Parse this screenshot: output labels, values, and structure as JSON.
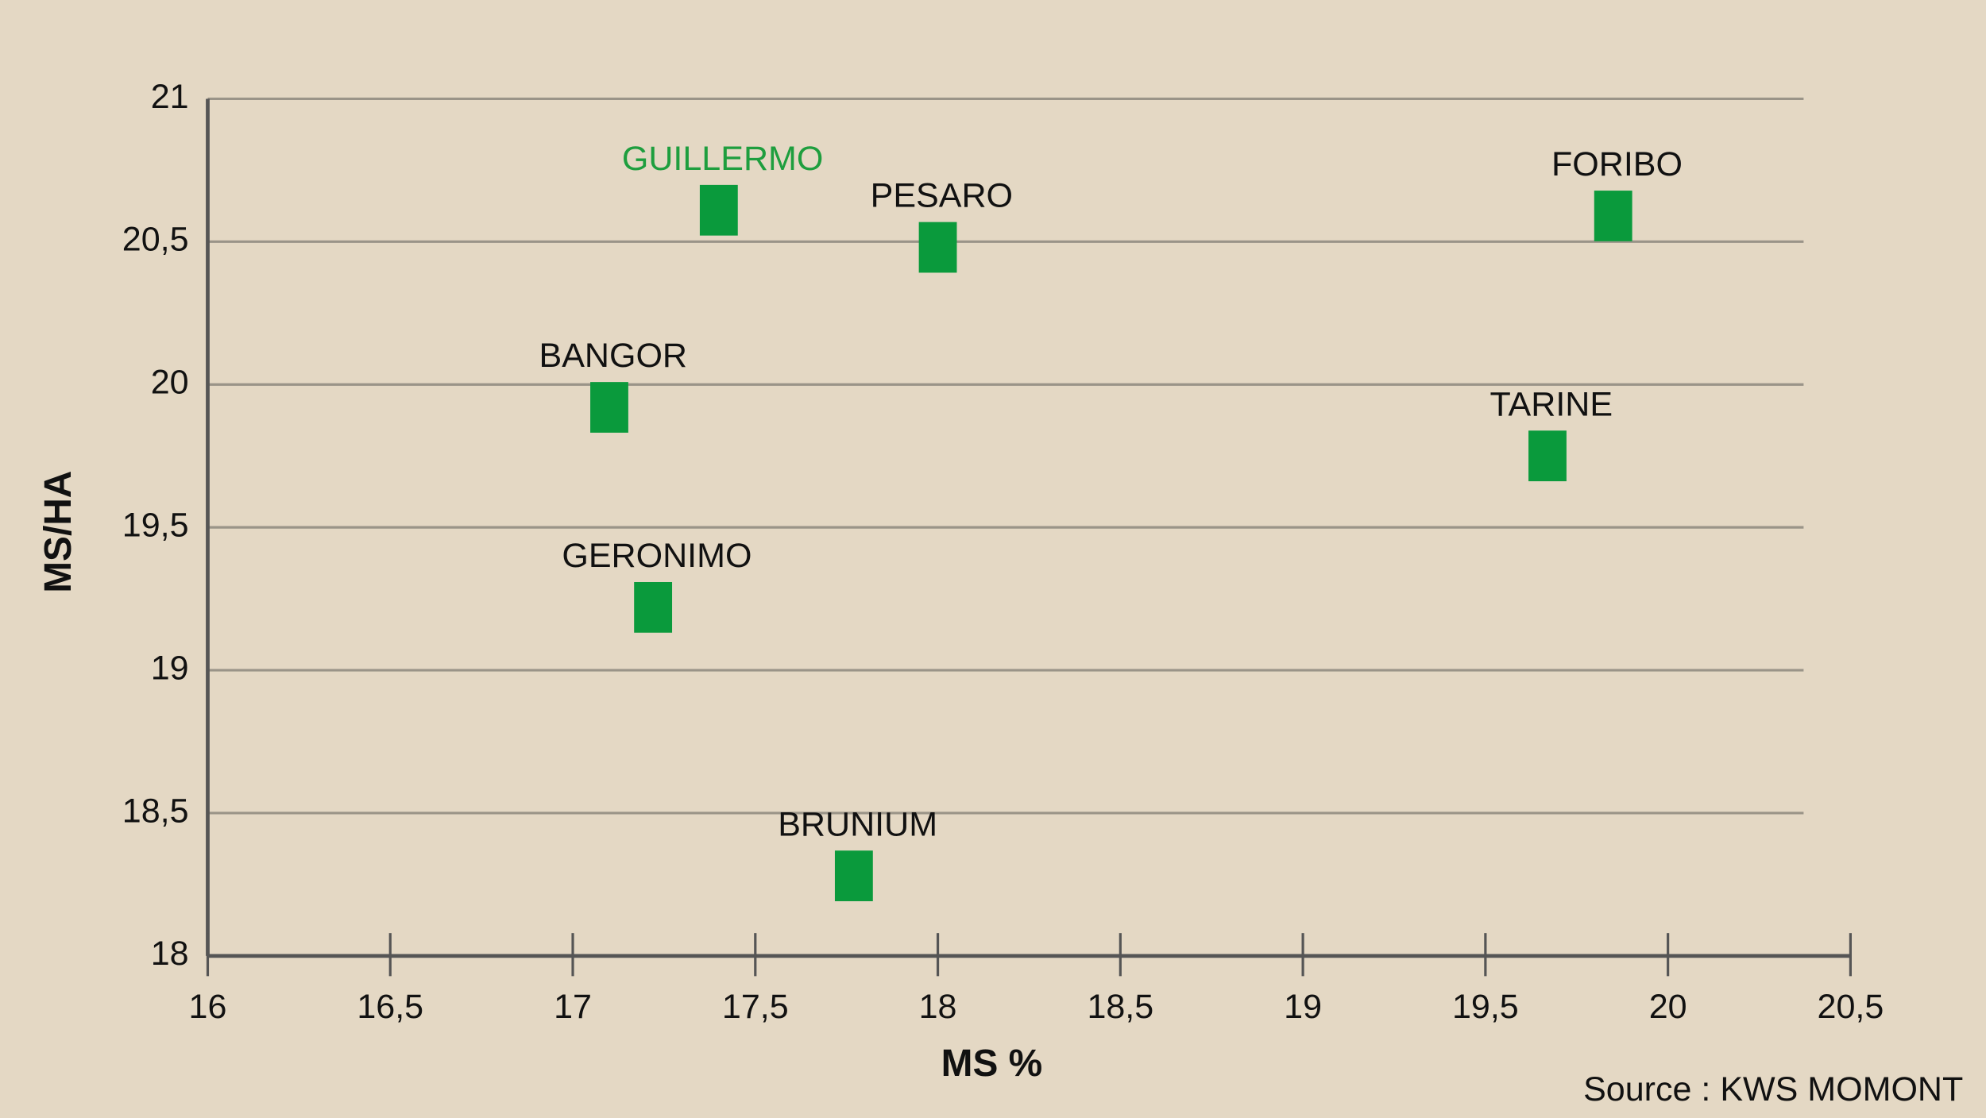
{
  "chart_data": {
    "type": "scatter",
    "x_label": "MS %",
    "y_label": "MS/HA",
    "source": "Source : KWS MOMONT",
    "labels": [
      "GUILLERMO",
      "PESARO",
      "FORIBO",
      "BANGOR",
      "TARINE",
      "GERONIMO",
      "BRUNIUM"
    ],
    "x": [
      17.4,
      18.0,
      19.85,
      17.1,
      19.67,
      17.22,
      17.77
    ],
    "values": [
      20.61,
      20.48,
      20.59,
      19.92,
      19.75,
      19.22,
      18.28
    ],
    "color": "#0a9a3c",
    "label_colors": [
      "#1e9e3e",
      "#111111",
      "#111111",
      "#111111",
      "#111111",
      "#111111",
      "#111111"
    ],
    "xlim": [
      16,
      20.5
    ],
    "xticks": [
      16,
      {
        "value": 16.5,
        "label": "16,5"
      },
      17,
      {
        "value": 17.5,
        "label": "17,5"
      },
      18,
      {
        "value": 18.5,
        "label": "18,5"
      },
      19,
      {
        "value": 19.5,
        "label": "19,5"
      },
      20,
      {
        "value": 20.5,
        "label": "20,5"
      }
    ],
    "ylim": [
      18,
      21
    ],
    "yticks": [
      18,
      {
        "value": 18.5,
        "label": "18,5"
      },
      19,
      {
        "value": 19.5,
        "label": "19,5"
      },
      20,
      {
        "value": 20.5,
        "label": "20,5"
      },
      21
    ],
    "grid": true
  }
}
